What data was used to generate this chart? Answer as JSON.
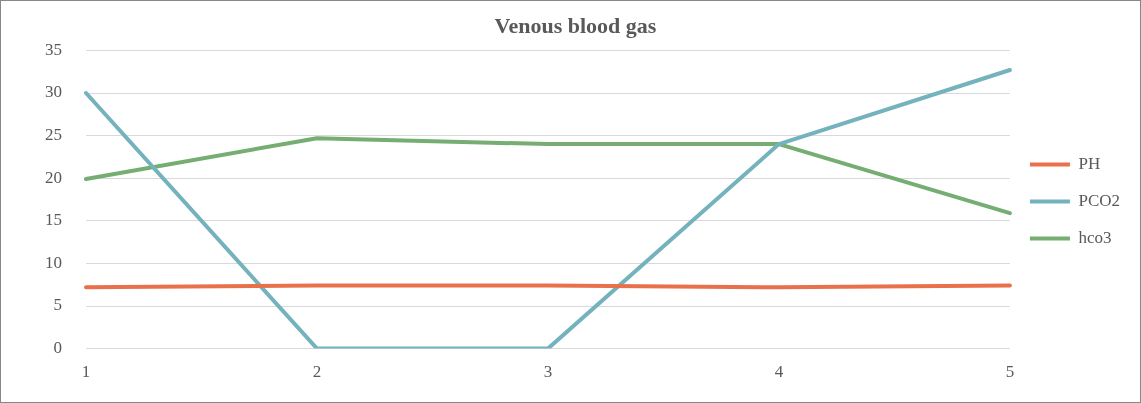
{
  "chart_data": {
    "type": "line",
    "title": "Venous blood gas",
    "categories": [
      "1",
      "2",
      "3",
      "4",
      "5"
    ],
    "series": [
      {
        "name": "PH",
        "color": "#e8714b",
        "values": [
          7.2,
          7.4,
          7.4,
          7.2,
          7.4
        ]
      },
      {
        "name": "PCO2",
        "color": "#74b3bd",
        "values": [
          30,
          0,
          0,
          24,
          32.7
        ]
      },
      {
        "name": "hco3",
        "color": "#76ad72",
        "values": [
          19.9,
          24.7,
          24,
          24,
          15.9
        ]
      }
    ],
    "ylim": [
      0,
      35
    ],
    "yticks": [
      0,
      5,
      10,
      15,
      20,
      25,
      30,
      35
    ],
    "grid": "y",
    "legend": "right",
    "marker": "none",
    "line_style": "solid"
  }
}
